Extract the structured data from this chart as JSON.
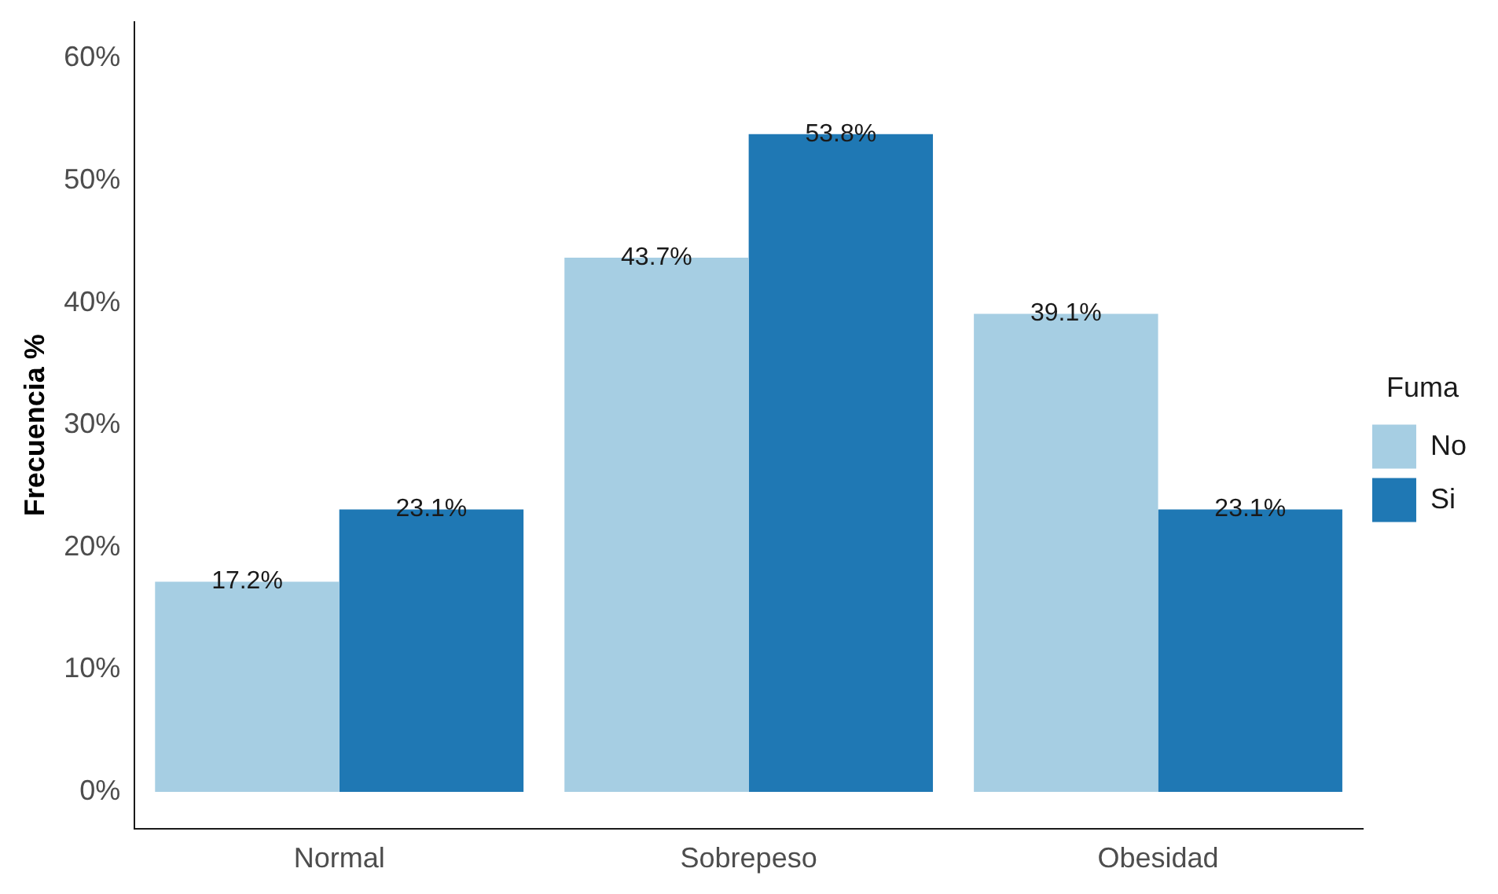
{
  "chart_data": {
    "type": "bar",
    "ylabel": "Frecuencia %",
    "legend_title": "Fuma",
    "categories": [
      "Normal",
      "Sobrepeso",
      "Obesidad"
    ],
    "series": [
      {
        "name": "No",
        "color": "#a6cee3",
        "values": [
          17.2,
          43.7,
          39.1
        ],
        "value_labels": [
          "17.2%",
          "43.7%",
          "39.1%"
        ]
      },
      {
        "name": "Si",
        "color": "#1f78b4",
        "values": [
          23.1,
          53.8,
          23.1
        ],
        "value_labels": [
          "23.1%",
          "53.8%",
          "23.1%"
        ]
      }
    ],
    "ylim": [
      -3,
      63
    ],
    "yticks": [
      {
        "value": 0,
        "label": "0%"
      },
      {
        "value": 10,
        "label": "10%"
      },
      {
        "value": 20,
        "label": "20%"
      },
      {
        "value": 30,
        "label": "30%"
      },
      {
        "value": 40,
        "label": "40%"
      },
      {
        "value": 50,
        "label": "50%"
      },
      {
        "value": 60,
        "label": "60%"
      }
    ],
    "grid": false,
    "legend": "right"
  }
}
